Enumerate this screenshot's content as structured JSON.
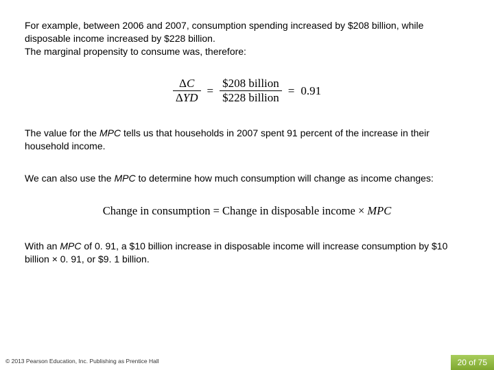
{
  "para1": "For example, between 2006 and 2007, consumption spending increased by $208 billion, while disposable income increased by $228 billion.",
  "para1_line3": "The marginal propensity to consume was, therefore:",
  "equation": {
    "left_num": "ΔC",
    "left_den": "ΔYD",
    "right_num": "$208 billion",
    "right_den": "$228 billion",
    "result": "0.91"
  },
  "para2_a": "The value for the ",
  "para2_mpc": "MPC",
  "para2_b": " tells us that households in 2007 spent 91 percent of the increase in their household income.",
  "para3_a": "We can also use the ",
  "para3_mpc": "MPC",
  "para3_b": " to determine how much consumption will change as income changes:",
  "formula_a": "Change in consumption = Change in disposable income × ",
  "formula_mpc": "MPC",
  "para4_a": "With an ",
  "para4_mpc": "MPC",
  "para4_b": " of 0. 91, a $10 billion increase in disposable income will increase consumption by $10 billion × 0. 91, or $9. 1 billion.",
  "copyright": "© 2013 Pearson Education, Inc. Publishing as Prentice Hall",
  "page_indicator": "20 of 75",
  "colors": {
    "text": "#000000",
    "background": "#ffffff",
    "badge_bg_top": "#a8cd5c",
    "badge_bg_bottom": "#7fa830",
    "badge_text": "#ffffff"
  }
}
